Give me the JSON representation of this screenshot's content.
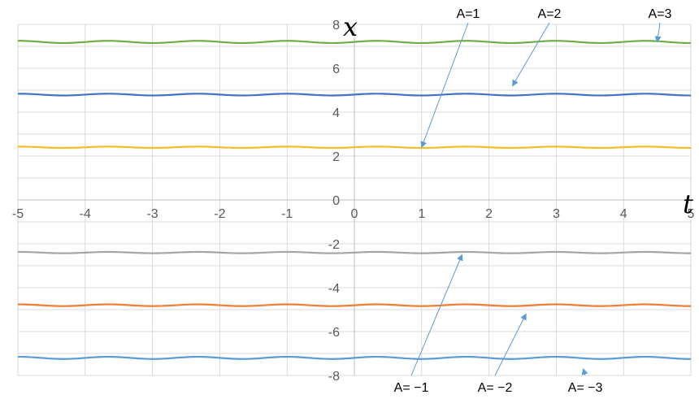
{
  "chart_data": {
    "type": "line",
    "xlabel": "t",
    "ylabel": "x",
    "xlim": [
      -5,
      5
    ],
    "ylim": [
      -8,
      8
    ],
    "x_ticks": [
      "-5",
      "-4",
      "-3",
      "-2",
      "-1",
      "0",
      "1",
      "2",
      "3",
      "4",
      "5"
    ],
    "y_ticks": [
      "-8",
      "-6",
      "-4",
      "-2",
      "0",
      "2",
      "4",
      "6",
      "8"
    ],
    "grid": true,
    "series": [
      {
        "name": "A=1",
        "color": "#f5bd26",
        "mean": 2.4,
        "amplitude": 0.03,
        "period": 1.33
      },
      {
        "name": "A=2",
        "color": "#4472c4",
        "mean": 4.8,
        "amplitude": 0.04,
        "period": 1.33
      },
      {
        "name": "A=3",
        "color": "#70ad47",
        "mean": 7.2,
        "amplitude": 0.05,
        "period": 1.33
      },
      {
        "name": "A= −1",
        "color": "#a5a5a5",
        "mean": -2.4,
        "amplitude": 0.03,
        "period": 1.33
      },
      {
        "name": "A= −2",
        "color": "#ed7d31",
        "mean": -4.8,
        "amplitude": 0.04,
        "period": 1.33
      },
      {
        "name": "A= −3",
        "color": "#5b9bd5",
        "mean": -7.2,
        "amplitude": 0.05,
        "period": 1.33
      }
    ],
    "annotations": [
      {
        "text": "A=1",
        "target": [
          1.0,
          2.4
        ]
      },
      {
        "text": "A=2",
        "target": [
          2.35,
          5.2
        ]
      },
      {
        "text": "A=3",
        "target": [
          4.5,
          7.2
        ]
      },
      {
        "text": "A= −1",
        "target": [
          1.6,
          -2.5
        ]
      },
      {
        "text": "A= −2",
        "target": [
          2.55,
          -5.2
        ]
      },
      {
        "text": "A= −3",
        "target": [
          3.4,
          -7.7
        ]
      }
    ],
    "annotation_color": "#5b9bd5"
  }
}
